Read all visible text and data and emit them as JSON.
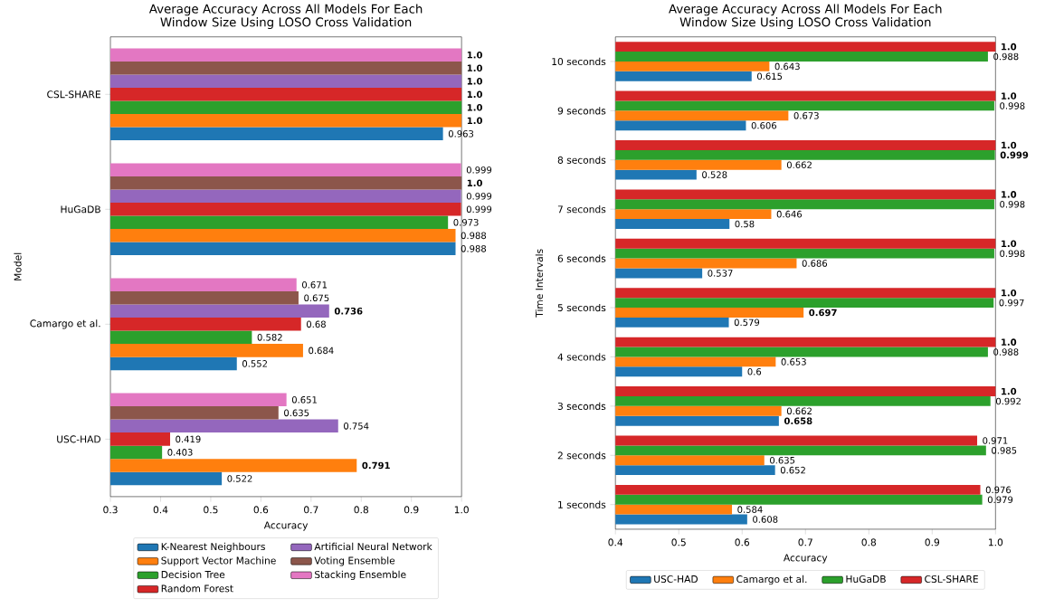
{
  "chart_data": [
    {
      "type": "bar",
      "orientation": "horizontal",
      "title": "Average Accuracy Across All Models For Each Window Size Using LOSO Cross Validation",
      "xlabel": "Accuracy",
      "ylabel": "Model",
      "legend": "bottom",
      "categories": [
        "CSL-SHARE",
        "HuGaDB",
        "Camargo et al.",
        "USC-HAD"
      ],
      "xlim": [
        0.3,
        1.0
      ],
      "xticks": [
        {
          "value": 0.3,
          "label": "0.3"
        },
        {
          "value": 0.4,
          "label": "0.4"
        },
        {
          "value": 0.5,
          "label": "0.5"
        },
        {
          "value": 0.6,
          "label": "0.6"
        },
        {
          "value": 0.7,
          "label": "0.7"
        },
        {
          "value": 0.8,
          "label": "0.8"
        },
        {
          "value": 0.9,
          "label": "0.9"
        },
        {
          "value": 1.0,
          "label": "1.0"
        }
      ],
      "series": [
        {
          "name": "K-Nearest Neighbours",
          "color": "#1f77b4",
          "values": [
            0.963,
            0.988,
            0.552,
            0.522
          ],
          "value_labels": [
            "0.963",
            "0.988",
            "0.552",
            "0.522"
          ]
        },
        {
          "name": "Support Vector Machine",
          "color": "#ff7f0e",
          "values": [
            1.0,
            0.988,
            0.684,
            0.791
          ],
          "value_labels": [
            "**1.0**",
            "0.988",
            "0.684",
            "**0.791**"
          ]
        },
        {
          "name": "Decision Tree",
          "color": "#2ca02c",
          "values": [
            1.0,
            0.973,
            0.582,
            0.403
          ],
          "value_labels": [
            "**1.0**",
            "0.973",
            "0.582",
            "0.403"
          ]
        },
        {
          "name": "Random Forest",
          "color": "#d62728",
          "values": [
            1.0,
            0.999,
            0.68,
            0.419
          ],
          "value_labels": [
            "**1.0**",
            "0.999",
            "0.68",
            "0.419"
          ]
        },
        {
          "name": "Artificial Neural Network",
          "color": "#9467bd",
          "values": [
            1.0,
            0.999,
            0.736,
            0.754
          ],
          "value_labels": [
            "**1.0**",
            "0.999",
            "**0.736**",
            "0.754"
          ]
        },
        {
          "name": "Voting Ensemble",
          "color": "#8c564b",
          "values": [
            1.0,
            1.0,
            0.675,
            0.635
          ],
          "value_labels": [
            "**1.0**",
            "**1.0**",
            "0.675",
            "0.635"
          ]
        },
        {
          "name": "Stacking Ensemble",
          "color": "#e377c2",
          "values": [
            1.0,
            0.999,
            0.671,
            0.651
          ],
          "value_labels": [
            "**1.0**",
            "0.999",
            "0.671",
            "0.651"
          ]
        }
      ]
    },
    {
      "type": "bar",
      "orientation": "horizontal",
      "title": "Average Accuracy Across All Models For Each Window Size Using LOSO Cross Validation",
      "xlabel": "Accuracy",
      "ylabel": "Time Intervals",
      "legend": "bottom",
      "categories": [
        "10 seconds",
        "9 seconds",
        "8 seconds",
        "7 seconds",
        "6 seconds",
        "5 seconds",
        "4 seconds",
        "3 seconds",
        "2 seconds",
        "1 seconds"
      ],
      "xlim": [
        0.4,
        1.0
      ],
      "xticks": [
        {
          "value": 0.4,
          "label": "0.4"
        },
        {
          "value": 0.5,
          "label": "0.5"
        },
        {
          "value": 0.6,
          "label": "0.6"
        },
        {
          "value": 0.7,
          "label": "0.7"
        },
        {
          "value": 0.8,
          "label": "0.8"
        },
        {
          "value": 0.9,
          "label": "0.9"
        },
        {
          "value": 1.0,
          "label": "1.0"
        }
      ],
      "series": [
        {
          "name": "USC-HAD",
          "color": "#1f77b4",
          "values": [
            0.615,
            0.606,
            0.528,
            0.58,
            0.537,
            0.579,
            0.6,
            0.658,
            0.652,
            0.608
          ],
          "value_labels": [
            "0.615",
            "0.606",
            "0.528",
            "0.58",
            "0.537",
            "0.579",
            "0.6",
            "**0.658**",
            "0.652",
            "0.608"
          ]
        },
        {
          "name": "Camargo et al.",
          "color": "#ff7f0e",
          "values": [
            0.643,
            0.673,
            0.662,
            0.646,
            0.686,
            0.697,
            0.653,
            0.662,
            0.635,
            0.584
          ],
          "value_labels": [
            "0.643",
            "0.673",
            "0.662",
            "0.646",
            "0.686",
            "**0.697**",
            "0.653",
            "0.662",
            "0.635",
            "0.584"
          ]
        },
        {
          "name": "HuGaDB",
          "color": "#2ca02c",
          "values": [
            0.988,
            0.998,
            0.999,
            0.998,
            0.998,
            0.997,
            0.988,
            0.992,
            0.985,
            0.979
          ],
          "value_labels": [
            "0.988",
            "0.998",
            "**0.999**",
            "0.998",
            "0.998",
            "0.997",
            "0.988",
            "0.992",
            "0.985",
            "0.979"
          ]
        },
        {
          "name": "CSL-SHARE",
          "color": "#d62728",
          "values": [
            1.0,
            1.0,
            1.0,
            1.0,
            1.0,
            1.0,
            1.0,
            1.0,
            0.971,
            0.976
          ],
          "value_labels": [
            "**1.0**",
            "**1.0**",
            "**1.0**",
            "**1.0**",
            "**1.0**",
            "**1.0**",
            "**1.0**",
            "**1.0**",
            "0.971",
            "0.976"
          ]
        }
      ]
    }
  ]
}
